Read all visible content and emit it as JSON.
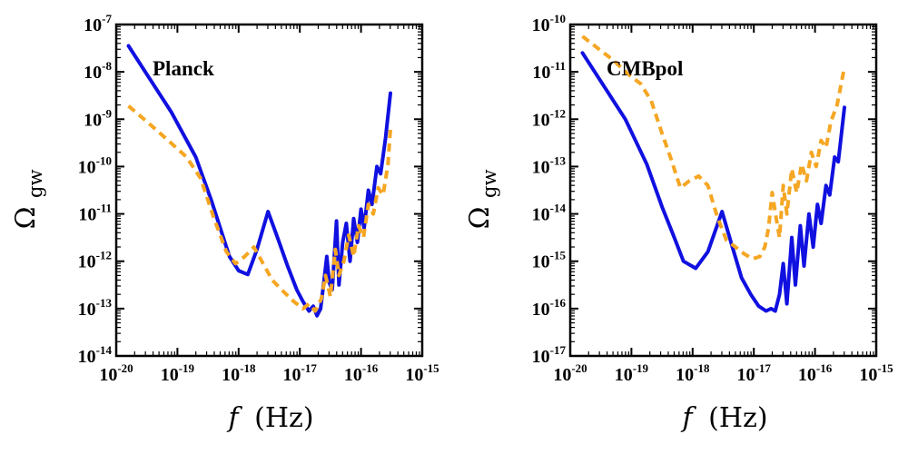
{
  "chart_data": [
    {
      "type": "line",
      "title": "Planck",
      "xlabel_italic": "f",
      "xlabel_unit": "(Hz)",
      "ylabel_symbol": "Ω",
      "ylabel_subscript": "gw",
      "xscale": "log",
      "yscale": "log",
      "xlim": [
        1e-20,
        1e-15
      ],
      "ylim": [
        1e-14,
        1e-07
      ],
      "x_ticks": [
        {
          "base": "10",
          "exp": "-20",
          "value": -20
        },
        {
          "base": "10",
          "exp": "-19",
          "value": -19
        },
        {
          "base": "10",
          "exp": "-18",
          "value": -18
        },
        {
          "base": "10",
          "exp": "-17",
          "value": -17
        },
        {
          "base": "10",
          "exp": "-16",
          "value": -16
        },
        {
          "base": "10",
          "exp": "-15",
          "value": -15
        }
      ],
      "y_ticks": [
        {
          "base": "10",
          "exp": "-14",
          "value": -14
        },
        {
          "base": "10",
          "exp": "-13",
          "value": -13
        },
        {
          "base": "10",
          "exp": "-12",
          "value": -12
        },
        {
          "base": "10",
          "exp": "-11",
          "value": -11
        },
        {
          "base": "10",
          "exp": "-10",
          "value": -10
        },
        {
          "base": "10",
          "exp": "-9",
          "value": -9
        },
        {
          "base": "10",
          "exp": "-8",
          "value": -8
        },
        {
          "base": "10",
          "exp": "-7",
          "value": -7
        }
      ],
      "series": [
        {
          "name": "solid",
          "color": "#1010e0",
          "style": "solid",
          "log_points": [
            [
              -19.8,
              -7.45
            ],
            [
              -19.5,
              -8.05
            ],
            [
              -19.1,
              -8.85
            ],
            [
              -18.7,
              -9.8
            ],
            [
              -18.45,
              -10.7
            ],
            [
              -18.3,
              -11.3
            ],
            [
              -18.15,
              -11.9
            ],
            [
              -18.0,
              -12.2
            ],
            [
              -17.85,
              -12.28
            ],
            [
              -17.7,
              -11.75
            ],
            [
              -17.52,
              -10.95
            ],
            [
              -17.35,
              -11.55
            ],
            [
              -17.2,
              -12.1
            ],
            [
              -17.05,
              -12.6
            ],
            [
              -16.95,
              -12.85
            ],
            [
              -16.85,
              -13.05
            ],
            [
              -16.78,
              -12.95
            ],
            [
              -16.72,
              -13.15
            ],
            [
              -16.66,
              -13.0
            ],
            [
              -16.6,
              -12.35
            ],
            [
              -16.56,
              -11.9
            ],
            [
              -16.52,
              -12.45
            ],
            [
              -16.47,
              -12.6
            ],
            [
              -16.4,
              -11.15
            ],
            [
              -16.36,
              -12.5
            ],
            [
              -16.3,
              -11.6
            ],
            [
              -16.24,
              -11.2
            ],
            [
              -16.18,
              -12.0
            ],
            [
              -16.12,
              -11.1
            ],
            [
              -16.06,
              -11.6
            ],
            [
              -16.0,
              -10.9
            ],
            [
              -15.95,
              -11.3
            ],
            [
              -15.88,
              -10.5
            ],
            [
              -15.82,
              -10.8
            ],
            [
              -15.74,
              -10.0
            ],
            [
              -15.68,
              -10.15
            ],
            [
              -15.6,
              -9.4
            ],
            [
              -15.52,
              -8.45
            ]
          ]
        },
        {
          "name": "dashed",
          "color": "#f5a623",
          "style": "dashed",
          "log_points": [
            [
              -19.8,
              -8.72
            ],
            [
              -19.5,
              -9.05
            ],
            [
              -19.15,
              -9.45
            ],
            [
              -18.85,
              -9.8
            ],
            [
              -18.62,
              -10.25
            ],
            [
              -18.4,
              -11.1
            ],
            [
              -18.2,
              -11.8
            ],
            [
              -18.05,
              -12.05
            ],
            [
              -17.9,
              -11.9
            ],
            [
              -17.75,
              -11.7
            ],
            [
              -17.6,
              -12.05
            ],
            [
              -17.45,
              -12.4
            ],
            [
              -17.3,
              -12.6
            ],
            [
              -17.1,
              -12.85
            ],
            [
              -16.95,
              -13.0
            ],
            [
              -16.85,
              -12.9
            ],
            [
              -16.75,
              -13.05
            ],
            [
              -16.65,
              -12.8
            ],
            [
              -16.58,
              -12.3
            ],
            [
              -16.5,
              -12.75
            ],
            [
              -16.42,
              -11.75
            ],
            [
              -16.36,
              -12.3
            ],
            [
              -16.28,
              -12.0
            ],
            [
              -16.2,
              -11.45
            ],
            [
              -16.12,
              -11.9
            ],
            [
              -16.04,
              -11.25
            ],
            [
              -15.96,
              -11.5
            ],
            [
              -15.88,
              -10.8
            ],
            [
              -15.8,
              -11.0
            ],
            [
              -15.72,
              -10.45
            ],
            [
              -15.64,
              -10.6
            ],
            [
              -15.56,
              -9.95
            ],
            [
              -15.52,
              -9.2
            ]
          ]
        }
      ]
    },
    {
      "type": "line",
      "title": "CMBpol",
      "xlabel_italic": "f",
      "xlabel_unit": "(Hz)",
      "ylabel_symbol": "Ω",
      "ylabel_subscript": "gw",
      "xscale": "log",
      "yscale": "log",
      "xlim": [
        1e-20,
        1e-15
      ],
      "ylim": [
        1e-17,
        1e-10
      ],
      "x_ticks": [
        {
          "base": "10",
          "exp": "-20",
          "value": -20
        },
        {
          "base": "10",
          "exp": "-19",
          "value": -19
        },
        {
          "base": "10",
          "exp": "-18",
          "value": -18
        },
        {
          "base": "10",
          "exp": "-17",
          "value": -17
        },
        {
          "base": "10",
          "exp": "-16",
          "value": -16
        },
        {
          "base": "10",
          "exp": "-15",
          "value": -15
        }
      ],
      "y_ticks": [
        {
          "base": "10",
          "exp": "-17",
          "value": -17
        },
        {
          "base": "10",
          "exp": "-16",
          "value": -16
        },
        {
          "base": "10",
          "exp": "-15",
          "value": -15
        },
        {
          "base": "10",
          "exp": "-14",
          "value": -14
        },
        {
          "base": "10",
          "exp": "-13",
          "value": -13
        },
        {
          "base": "10",
          "exp": "-12",
          "value": -12
        },
        {
          "base": "10",
          "exp": "-11",
          "value": -11
        },
        {
          "base": "10",
          "exp": "-10",
          "value": -10
        }
      ],
      "series": [
        {
          "name": "solid",
          "color": "#1010e0",
          "style": "solid",
          "log_points": [
            [
              -19.8,
              -10.6
            ],
            [
              -19.5,
              -11.2
            ],
            [
              -19.1,
              -12.0
            ],
            [
              -18.75,
              -12.95
            ],
            [
              -18.5,
              -13.85
            ],
            [
              -18.3,
              -14.5
            ],
            [
              -18.15,
              -15.0
            ],
            [
              -17.95,
              -15.15
            ],
            [
              -17.75,
              -14.8
            ],
            [
              -17.52,
              -13.95
            ],
            [
              -17.35,
              -14.7
            ],
            [
              -17.2,
              -15.35
            ],
            [
              -17.05,
              -15.7
            ],
            [
              -16.92,
              -15.95
            ],
            [
              -16.8,
              -16.05
            ],
            [
              -16.72,
              -16.0
            ],
            [
              -16.65,
              -16.05
            ],
            [
              -16.58,
              -15.7
            ],
            [
              -16.52,
              -15.05
            ],
            [
              -16.46,
              -15.9
            ],
            [
              -16.38,
              -14.5
            ],
            [
              -16.32,
              -15.5
            ],
            [
              -16.24,
              -14.25
            ],
            [
              -16.18,
              -15.1
            ],
            [
              -16.1,
              -14.0
            ],
            [
              -16.03,
              -14.7
            ],
            [
              -15.96,
              -13.8
            ],
            [
              -15.9,
              -14.2
            ],
            [
              -15.82,
              -13.4
            ],
            [
              -15.76,
              -13.6
            ],
            [
              -15.68,
              -12.8
            ],
            [
              -15.62,
              -12.9
            ],
            [
              -15.52,
              -11.75
            ]
          ]
        },
        {
          "name": "dashed",
          "color": "#f5a623",
          "style": "dashed",
          "log_points": [
            [
              -19.8,
              -10.25
            ],
            [
              -19.55,
              -10.5
            ],
            [
              -19.3,
              -10.75
            ],
            [
              -19.05,
              -11.05
            ],
            [
              -18.85,
              -11.25
            ],
            [
              -18.68,
              -11.6
            ],
            [
              -18.5,
              -12.3
            ],
            [
              -18.35,
              -12.85
            ],
            [
              -18.2,
              -13.45
            ],
            [
              -18.05,
              -13.3
            ],
            [
              -17.9,
              -13.2
            ],
            [
              -17.75,
              -13.4
            ],
            [
              -17.6,
              -14.05
            ],
            [
              -17.45,
              -14.55
            ],
            [
              -17.3,
              -14.7
            ],
            [
              -17.15,
              -14.85
            ],
            [
              -17.02,
              -14.95
            ],
            [
              -16.9,
              -14.9
            ],
            [
              -16.82,
              -14.7
            ],
            [
              -16.76,
              -14.3
            ],
            [
              -16.7,
              -13.55
            ],
            [
              -16.64,
              -14.05
            ],
            [
              -16.58,
              -14.5
            ],
            [
              -16.52,
              -13.4
            ],
            [
              -16.46,
              -14.0
            ],
            [
              -16.38,
              -13.05
            ],
            [
              -16.3,
              -13.55
            ],
            [
              -16.22,
              -12.95
            ],
            [
              -16.14,
              -13.3
            ],
            [
              -16.06,
              -12.7
            ],
            [
              -15.98,
              -13.0
            ],
            [
              -15.9,
              -12.45
            ],
            [
              -15.82,
              -12.6
            ],
            [
              -15.74,
              -12.05
            ],
            [
              -15.64,
              -11.7
            ],
            [
              -15.52,
              -10.9
            ]
          ]
        }
      ]
    }
  ]
}
